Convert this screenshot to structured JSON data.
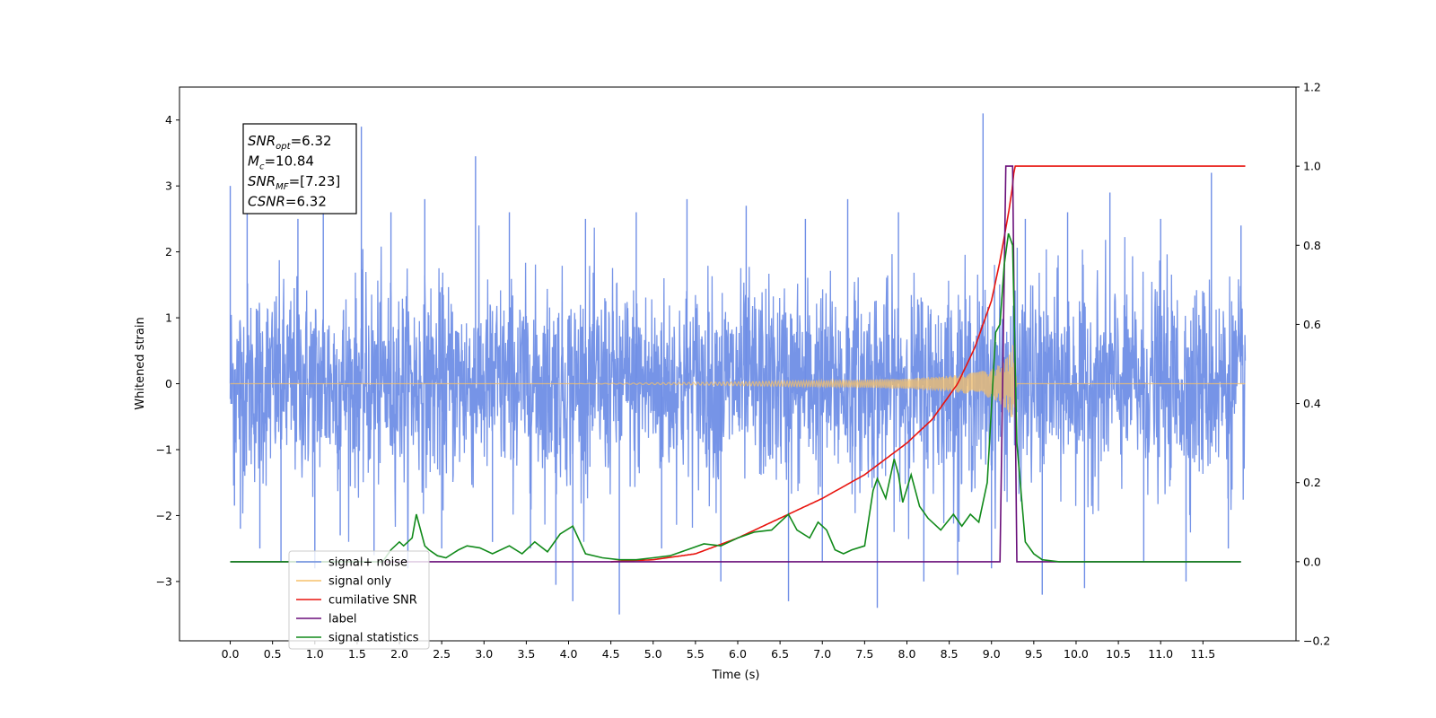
{
  "chart_data": {
    "type": "line",
    "title": "",
    "xlabel": "Time (s)",
    "ylabel": "Whitened strain",
    "y2label": "",
    "xlim": [
      -0.6,
      12.6
    ],
    "ylim": [
      -3.9,
      4.5
    ],
    "y2lim": [
      -0.2,
      1.2
    ],
    "x_ticks": [
      0.0,
      0.5,
      1.0,
      1.5,
      2.0,
      2.5,
      3.0,
      3.5,
      4.0,
      4.5,
      5.0,
      5.5,
      6.0,
      6.5,
      7.0,
      7.5,
      8.0,
      8.5,
      9.0,
      9.5,
      10.0,
      10.5,
      11.0,
      11.5
    ],
    "x_tick_labels": [
      "0.0",
      "0.5",
      "1.0",
      "1.5",
      "2.0",
      "2.5",
      "3.0",
      "3.5",
      "4.0",
      "4.5",
      "5.0",
      "5.5",
      "6.0",
      "6.5",
      "7.0",
      "7.5",
      "8.0",
      "8.5",
      "9.0",
      "9.5",
      "10.0",
      "10.5",
      "11.0",
      "11.5"
    ],
    "y_ticks": [
      -3,
      -2,
      -1,
      0,
      1,
      2,
      3,
      4
    ],
    "y_tick_labels": [
      "−3",
      "−2",
      "−1",
      "0",
      "1",
      "2",
      "3",
      "4"
    ],
    "y2_ticks": [
      -0.2,
      0.0,
      0.2,
      0.4,
      0.6,
      0.8,
      1.0,
      1.2
    ],
    "y2_tick_labels": [
      "−0.2",
      "0.0",
      "0.2",
      "0.4",
      "0.6",
      "0.8",
      "1.0",
      "1.2"
    ],
    "grid": false,
    "legend_position": "lower-left",
    "annotation": {
      "lines": [
        {
          "base": "SNR",
          "sub": "opt",
          "value": "=6.32"
        },
        {
          "base": "M",
          "sub": "c",
          "value": "=10.84"
        },
        {
          "base": "SNR",
          "sub": "MF",
          "value": "=[7.23]"
        },
        {
          "base": "CSNR",
          "sub": "",
          "value": "=6.32"
        }
      ]
    },
    "noise_band": {
      "x_start": 0.0,
      "x_end": 12.0,
      "typical_range": [
        -1.6,
        1.6
      ],
      "color": "#6f8ee6"
    },
    "noise_spikes": [
      {
        "x": 0.0,
        "y": 3.0
      },
      {
        "x": 0.05,
        "y": -1.85
      },
      {
        "x": 0.2,
        "y": 2.7
      },
      {
        "x": 0.12,
        "y": -2.2
      },
      {
        "x": 0.35,
        "y": -2.5
      },
      {
        "x": 0.6,
        "y": -2.7
      },
      {
        "x": 0.8,
        "y": 2.5
      },
      {
        "x": 1.0,
        "y": -2.8
      },
      {
        "x": 1.1,
        "y": 3.0
      },
      {
        "x": 1.3,
        "y": -2.3
      },
      {
        "x": 1.55,
        "y": 3.9
      },
      {
        "x": 1.7,
        "y": -2.6
      },
      {
        "x": 1.9,
        "y": 2.6
      },
      {
        "x": 2.1,
        "y": -2.8
      },
      {
        "x": 2.3,
        "y": 2.8
      },
      {
        "x": 2.5,
        "y": -2.5
      },
      {
        "x": 2.9,
        "y": 3.45
      },
      {
        "x": 3.1,
        "y": -2.4
      },
      {
        "x": 3.3,
        "y": 2.6
      },
      {
        "x": 3.55,
        "y": -2.5
      },
      {
        "x": 3.85,
        "y": -3.05
      },
      {
        "x": 4.05,
        "y": -3.3
      },
      {
        "x": 4.2,
        "y": 2.5
      },
      {
        "x": 4.6,
        "y": -3.5
      },
      {
        "x": 4.8,
        "y": 2.6
      },
      {
        "x": 5.1,
        "y": -2.5
      },
      {
        "x": 5.4,
        "y": 2.8
      },
      {
        "x": 5.8,
        "y": -3.0
      },
      {
        "x": 6.1,
        "y": 2.7
      },
      {
        "x": 6.6,
        "y": -3.3
      },
      {
        "x": 6.8,
        "y": 2.5
      },
      {
        "x": 7.0,
        "y": -2.7
      },
      {
        "x": 7.3,
        "y": 2.8
      },
      {
        "x": 7.65,
        "y": -3.4
      },
      {
        "x": 7.9,
        "y": 2.6
      },
      {
        "x": 8.2,
        "y": -3.0
      },
      {
        "x": 8.6,
        "y": -2.9
      },
      {
        "x": 8.9,
        "y": 4.1
      },
      {
        "x": 9.0,
        "y": -2.8
      },
      {
        "x": 9.4,
        "y": 2.5
      },
      {
        "x": 9.6,
        "y": -3.2
      },
      {
        "x": 9.9,
        "y": 2.6
      },
      {
        "x": 10.1,
        "y": -3.1
      },
      {
        "x": 10.4,
        "y": 2.9
      },
      {
        "x": 10.8,
        "y": -2.7
      },
      {
        "x": 11.0,
        "y": 2.5
      },
      {
        "x": 11.3,
        "y": -3.0
      },
      {
        "x": 11.6,
        "y": 3.2
      },
      {
        "x": 11.8,
        "y": -2.5
      },
      {
        "x": 11.95,
        "y": 2.4
      }
    ],
    "series": [
      {
        "name": "signal+ noise",
        "color": "#6f8ee6",
        "axis": "left",
        "style": "noise",
        "x": [],
        "y": []
      },
      {
        "name": "signal only",
        "color": "#f5c06a",
        "axis": "left",
        "style": "chirp",
        "envelope": {
          "x": [
            0.0,
            4.0,
            5.5,
            6.5,
            7.5,
            8.0,
            8.5,
            8.8,
            9.0,
            9.1,
            9.2,
            9.25,
            9.3,
            12.0
          ],
          "y": [
            0.0,
            0.0,
            0.02,
            0.04,
            0.06,
            0.08,
            0.12,
            0.17,
            0.22,
            0.3,
            0.45,
            0.6,
            0.0,
            0.0
          ]
        }
      },
      {
        "name": "cumilative SNR",
        "color": "#e8140e",
        "axis": "right",
        "x": [
          4.5,
          5.0,
          5.5,
          6.0,
          6.5,
          7.0,
          7.5,
          8.0,
          8.3,
          8.6,
          8.8,
          9.0,
          9.1,
          9.2,
          9.25,
          9.27,
          12.0
        ],
        "y": [
          0.0,
          0.005,
          0.02,
          0.06,
          0.11,
          0.16,
          0.22,
          0.3,
          0.36,
          0.45,
          0.54,
          0.66,
          0.76,
          0.88,
          0.95,
          1.0,
          1.0
        ]
      },
      {
        "name": "label",
        "color": "#6a0f7a",
        "axis": "right",
        "x": [
          0.0,
          9.1,
          9.17,
          9.25,
          9.3,
          11.95
        ],
        "y": [
          0.0,
          0.0,
          1.0,
          1.0,
          0.0,
          0.0
        ]
      },
      {
        "name": "signal statistics",
        "color": "#118a1a",
        "axis": "right",
        "x": [
          0.0,
          1.8,
          1.9,
          2.0,
          2.05,
          2.15,
          2.2,
          2.3,
          2.35,
          2.45,
          2.55,
          2.7,
          2.8,
          2.95,
          3.1,
          3.3,
          3.45,
          3.6,
          3.75,
          3.9,
          4.05,
          4.2,
          4.4,
          4.6,
          4.8,
          5.0,
          5.2,
          5.4,
          5.6,
          5.8,
          6.0,
          6.2,
          6.4,
          6.5,
          6.6,
          6.7,
          6.85,
          6.95,
          7.05,
          7.15,
          7.25,
          7.35,
          7.5,
          7.6,
          7.65,
          7.75,
          7.85,
          7.9,
          7.95,
          8.05,
          8.15,
          8.25,
          8.4,
          8.55,
          8.65,
          8.75,
          8.85,
          8.95,
          9.05,
          9.1,
          9.15,
          9.2,
          9.25,
          9.3,
          9.4,
          9.5,
          9.6,
          9.8,
          11.95
        ],
        "y": [
          0.0,
          0.0,
          0.03,
          0.05,
          0.04,
          0.06,
          0.12,
          0.04,
          0.03,
          0.015,
          0.01,
          0.03,
          0.04,
          0.035,
          0.02,
          0.04,
          0.02,
          0.05,
          0.025,
          0.07,
          0.09,
          0.02,
          0.01,
          0.005,
          0.005,
          0.01,
          0.015,
          0.03,
          0.045,
          0.04,
          0.06,
          0.075,
          0.08,
          0.1,
          0.12,
          0.08,
          0.06,
          0.1,
          0.08,
          0.03,
          0.02,
          0.03,
          0.04,
          0.18,
          0.21,
          0.16,
          0.26,
          0.22,
          0.15,
          0.22,
          0.14,
          0.11,
          0.08,
          0.12,
          0.09,
          0.12,
          0.1,
          0.2,
          0.58,
          0.6,
          0.75,
          0.83,
          0.8,
          0.3,
          0.05,
          0.02,
          0.005,
          0.0,
          0.0
        ]
      }
    ]
  }
}
